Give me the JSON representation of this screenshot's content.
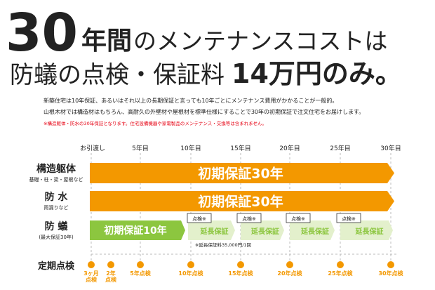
{
  "header": {
    "title_big": "30",
    "title_unit": "年間",
    "title_rest": "のメンテナンスコストは",
    "title2_a": "防蟻の点検・保証料",
    "title2_b": "14万円のみ。"
  },
  "body": {
    "lines": [
      "新築住宅は10年保証、あるいはそれ以上の長期保証と言っても10年ごとにメンテナンス費用がかかることが一般的。",
      "山根木材では構造材はもちろん、高耐久の外壁材や屋根材を標準仕様にすることで30年の初期保証で注文住宅をお届けします。"
    ],
    "note": "※構造躯体・防水の30年保証となります。住宅設備機器や家電製品のメンテナンス・交換等は含まれません。"
  },
  "timeline": {
    "start": "お引渡し",
    "years": [
      "5年目",
      "10年目",
      "15年目",
      "20年目",
      "25年目",
      "30年目"
    ]
  },
  "rows": [
    {
      "label": "構造躯体",
      "sub": "基礎・柱・梁・屋根など",
      "bar": "初期保証30年"
    },
    {
      "label": "防 水",
      "sub": "雨漏りなど",
      "bar": "初期保証30年"
    }
  ],
  "termite": {
    "label": "防 蟻",
    "sub": "(最大保証30年)",
    "initial": "初期保証10年",
    "extended": [
      "延長保証",
      "延長保証",
      "延長保証",
      "延長保証"
    ],
    "inspections": [
      "点検※",
      "点検※",
      "点検※",
      "点検※"
    ],
    "fee_note": "※延長保証料35,000円/1回"
  },
  "inspection": {
    "label": "定期点検",
    "points": [
      [
        "3ヶ月",
        "点検"
      ],
      [
        "2年",
        "点検"
      ],
      [
        "5年点検"
      ],
      [
        "10年点検"
      ],
      [
        "15年点検"
      ],
      [
        "20年点検"
      ],
      [
        "25年点検"
      ],
      [
        "30年点検"
      ]
    ]
  }
}
